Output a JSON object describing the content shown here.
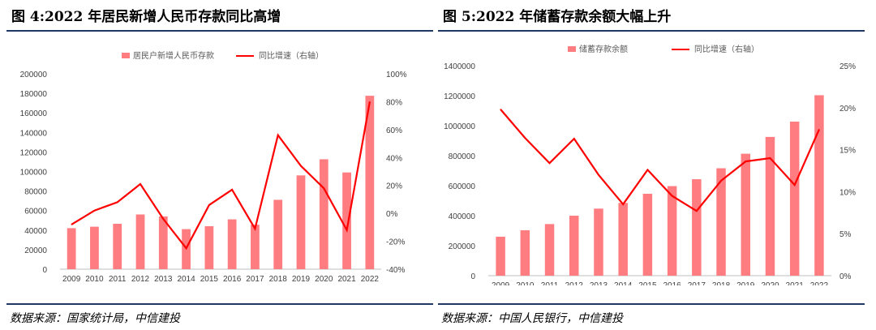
{
  "panels": [
    {
      "title": "图 4:2022 年居民新增人民币存款同比高增",
      "source": "数据来源：国家统计局，中信建投",
      "chart_data": {
        "type": "bar+line",
        "categories": [
          "2009",
          "2010",
          "2011",
          "2012",
          "2013",
          "2014",
          "2015",
          "2016",
          "2017",
          "2018",
          "2019",
          "2020",
          "2021",
          "2022"
        ],
        "series": [
          {
            "name": "居民户新增人民币存款",
            "type": "bar",
            "axis": "left",
            "values": [
              42000,
              43500,
              46500,
              56000,
              54000,
              41000,
              44000,
              51000,
              45500,
              71000,
              96000,
              112500,
              99000,
              177500
            ]
          },
          {
            "name": "同比增速（右轴）",
            "type": "line",
            "axis": "right",
            "values": [
              -8,
              2,
              8,
              21,
              -4,
              -25,
              6,
              17,
              -11,
              56,
              34,
              18,
              -12,
              80
            ]
          }
        ],
        "left_axis": {
          "min": 0,
          "max": 200000,
          "ticks": [
            "0",
            "20000",
            "40000",
            "60000",
            "80000",
            "100000",
            "120000",
            "140000",
            "160000",
            "180000",
            "200000"
          ]
        },
        "right_axis": {
          "min": -40,
          "max": 100,
          "ticks": [
            "-40%",
            "-20%",
            "0%",
            "20%",
            "40%",
            "60%",
            "80%",
            "100%"
          ]
        },
        "legend": "top",
        "colors": {
          "bar": "#ff7c80",
          "line": "#ff0000"
        }
      }
    },
    {
      "title": "图 5:2022 年储蓄存款余额大幅上升",
      "source": "数据来源：中国人民银行，中信建投",
      "chart_data": {
        "type": "bar+line",
        "categories": [
          "2009",
          "2010",
          "2011",
          "2012",
          "2013",
          "2014",
          "2015",
          "2016",
          "2017",
          "2018",
          "2019",
          "2020",
          "2021",
          "2022"
        ],
        "series": [
          {
            "name": "储蓄存款余额",
            "type": "bar",
            "axis": "left",
            "values": [
              260000,
              303000,
              344000,
              400000,
              447000,
              485000,
              546000,
              597000,
              643000,
              716000,
              813000,
              925000,
              1027000,
              1203000
            ]
          },
          {
            "name": "同比增速（右轴）",
            "type": "line",
            "axis": "right",
            "values": [
              19.8,
              16.4,
              13.4,
              16.3,
              12.0,
              8.5,
              12.6,
              9.5,
              7.7,
              11.3,
              13.6,
              14.0,
              10.8,
              17.4
            ]
          }
        ],
        "left_axis": {
          "min": 0,
          "max": 1400000,
          "ticks": [
            "0",
            "200000",
            "400000",
            "600000",
            "800000",
            "1000000",
            "1200000",
            "1400000"
          ]
        },
        "right_axis": {
          "min": 0,
          "max": 25,
          "ticks": [
            "0%",
            "5%",
            "10%",
            "15%",
            "20%",
            "25%"
          ]
        },
        "legend": "top",
        "colors": {
          "bar": "#ff7c80",
          "line": "#ff0000"
        }
      }
    }
  ]
}
